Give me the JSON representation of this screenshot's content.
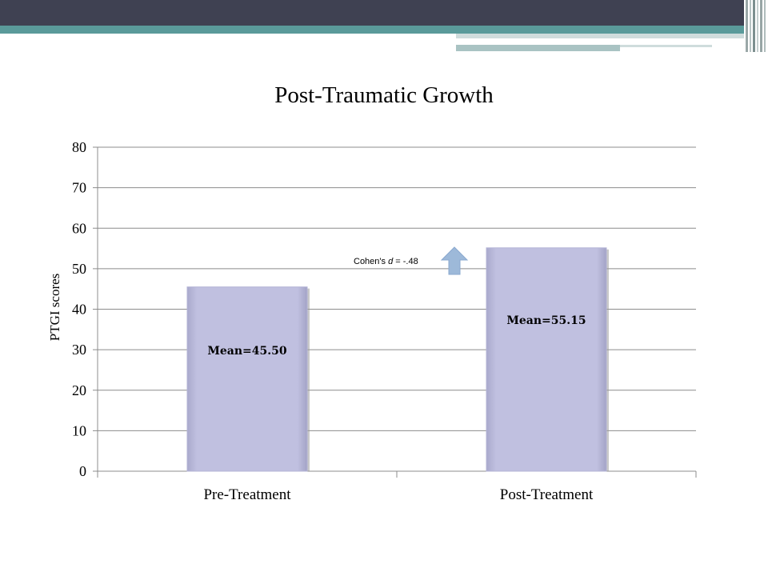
{
  "chart_data": {
    "type": "bar",
    "title": "Post-Traumatic Growth",
    "xlabel": "",
    "ylabel": "PTGI scores",
    "categories": [
      "Pre-Treatment",
      "Post-Treatment"
    ],
    "values": [
      45.5,
      55.15
    ],
    "data_labels": [
      "Mean=45.50",
      "Mean=55.15"
    ],
    "ylim": [
      0,
      80
    ],
    "yticks": [
      0,
      10,
      20,
      30,
      40,
      50,
      60,
      70,
      80
    ],
    "grid": true,
    "legend": "none",
    "bar_color": "#c0c0e0",
    "annotation": {
      "prefix": "Cohen's ",
      "symbol": "d",
      "suffix": " = -.48",
      "arrow_icon": "up-arrow-icon",
      "arrow_color": "#9db9d9"
    }
  },
  "theme": {
    "header_dark": "#3f4152",
    "header_teal": "#5a9a9a",
    "header_light": "#a9c3c3"
  }
}
